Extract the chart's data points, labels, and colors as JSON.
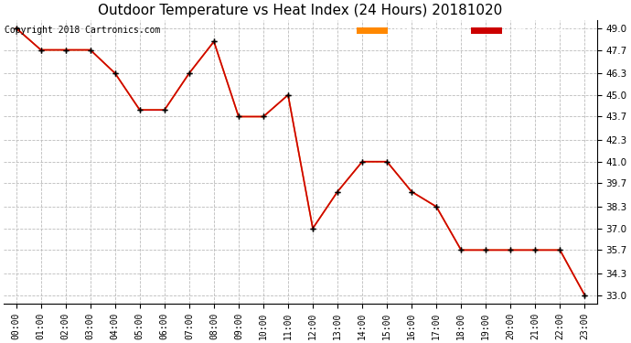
{
  "title": "Outdoor Temperature vs Heat Index (24 Hours) 20181020",
  "copyright": "Copyright 2018 Cartronics.com",
  "hours": [
    "00:00",
    "01:00",
    "02:00",
    "03:00",
    "04:00",
    "05:00",
    "06:00",
    "07:00",
    "08:00",
    "09:00",
    "10:00",
    "11:00",
    "12:00",
    "13:00",
    "14:00",
    "15:00",
    "16:00",
    "17:00",
    "18:00",
    "19:00",
    "20:00",
    "21:00",
    "22:00",
    "23:00"
  ],
  "temperature": [
    49.0,
    47.7,
    47.7,
    47.7,
    46.3,
    44.1,
    44.1,
    46.3,
    48.2,
    43.7,
    43.7,
    45.0,
    37.0,
    39.2,
    41.0,
    41.0,
    39.2,
    38.3,
    35.7,
    35.7,
    35.7,
    35.7,
    35.7,
    33.0
  ],
  "heat_index": [
    49.0,
    47.7,
    47.7,
    47.7,
    46.3,
    44.1,
    44.1,
    46.3,
    48.2,
    43.7,
    43.7,
    45.0,
    37.0,
    39.2,
    41.0,
    41.0,
    39.2,
    38.3,
    35.7,
    35.7,
    35.7,
    35.7,
    35.7,
    33.0
  ],
  "ylim_min": 32.5,
  "ylim_max": 49.5,
  "yticks": [
    33.0,
    34.3,
    35.7,
    37.0,
    38.3,
    39.7,
    41.0,
    42.3,
    43.7,
    45.0,
    46.3,
    47.7,
    49.0
  ],
  "temp_color": "#cc0000",
  "heat_index_color": "#ff8800",
  "marker_color": "#000000",
  "background_color": "#ffffff",
  "grid_color": "#bbbbbb",
  "title_fontsize": 11,
  "copyright_fontsize": 7,
  "legend_heat_index_bg": "#ff8800",
  "legend_temp_bg": "#cc0000",
  "legend_text_color": "#ffffff"
}
